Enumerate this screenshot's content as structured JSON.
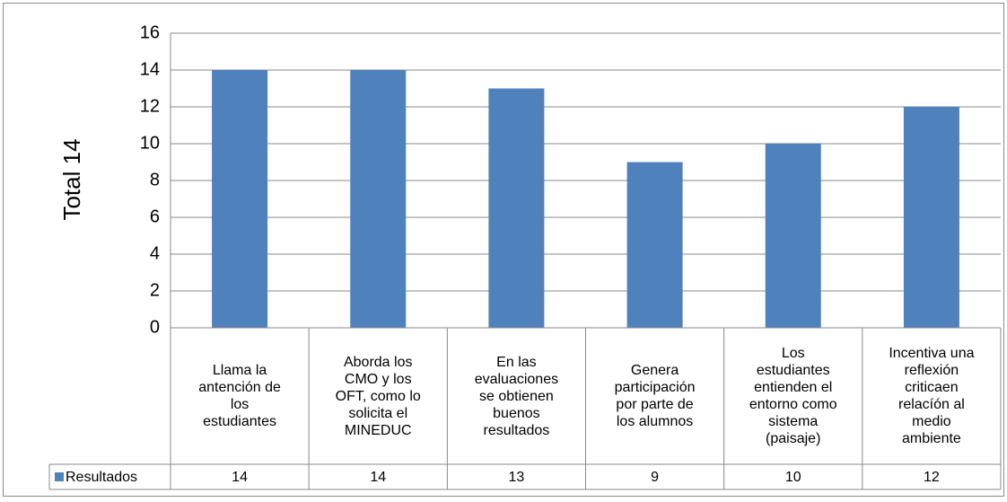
{
  "chart_data": {
    "type": "bar",
    "y_label": "Total 14",
    "categories": [
      "Llama la\nantención de\nlos\nestudiantes",
      "Aborda los\nCMO y los\nOFT, como lo\nsolicita el\nMINEDUC",
      "En las\nevaluaciones\nse obtienen\nbuenos\nresultados",
      "Genera\nparticipación\npor parte de\nlos alumnos",
      "Los\nestudiantes\nentienden el\nentorno como\nsistema\n(paisaje)",
      "Incentiva una\nreflexión\ncriticaen\nrelacíón al\nmedio\nambiente"
    ],
    "series": [
      {
        "name": "Resultados",
        "color": "#4f81bd",
        "values": [
          14,
          14,
          13,
          9,
          10,
          12
        ]
      }
    ],
    "ylim": [
      0,
      16
    ],
    "yticks": [
      0,
      2,
      4,
      6,
      8,
      10,
      12,
      14,
      16
    ],
    "grid": true,
    "data_table": true
  }
}
